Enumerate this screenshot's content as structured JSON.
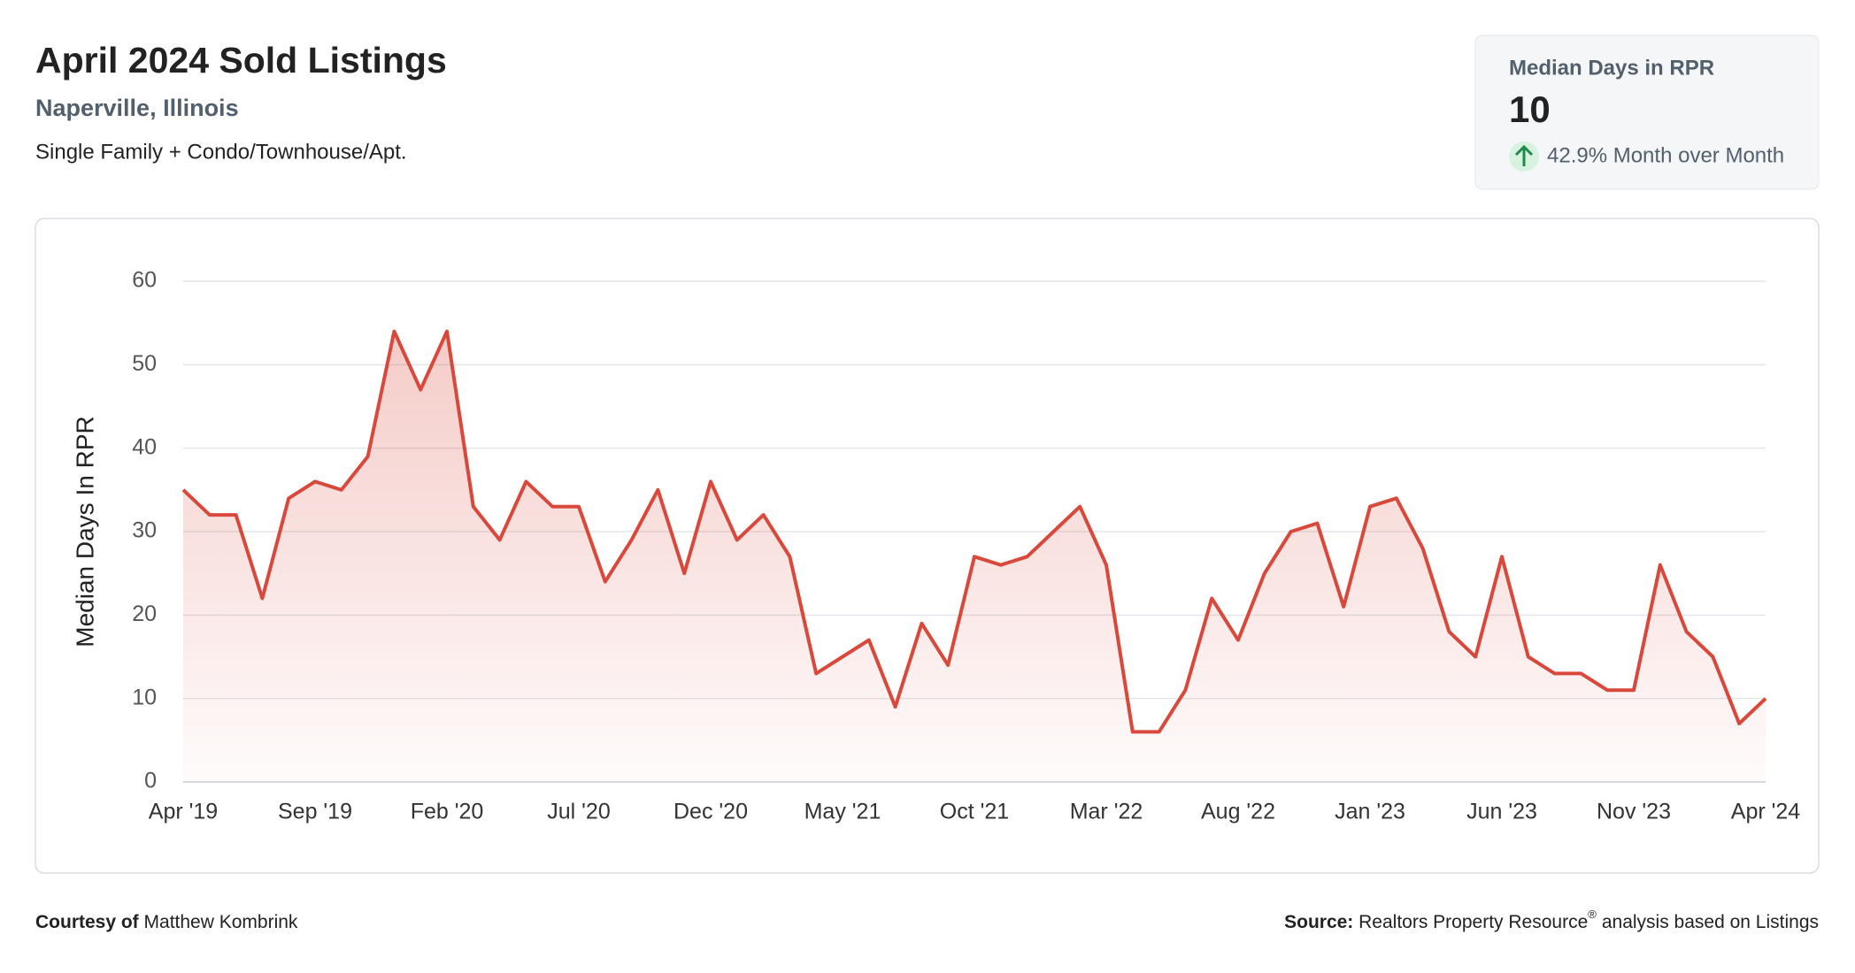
{
  "header": {
    "title": "April 2024 Sold Listings",
    "location": "Naperville, Illinois",
    "subtitle": "Single Family + Condo/Townhouse/Apt."
  },
  "kpi": {
    "label": "Median Days in RPR",
    "value": "10",
    "change": "42.9% Month over Month"
  },
  "footer": {
    "courtesy_label": "Courtesy of",
    "courtesy_name": "Matthew Kombrink",
    "source_label": "Source:",
    "source_name": "Realtors Property Resource",
    "source_mark": "®",
    "source_rest": "analysis based on Listings"
  },
  "chart_data": {
    "type": "area",
    "y_label": "Median Days In RPR",
    "categories": [
      "Apr '19",
      null,
      null,
      null,
      null,
      "Sep '19",
      null,
      null,
      null,
      null,
      "Feb '20",
      null,
      null,
      null,
      null,
      "Jul '20",
      null,
      null,
      null,
      null,
      "Dec '20",
      null,
      null,
      null,
      null,
      "May '21",
      null,
      null,
      null,
      null,
      "Oct '21",
      null,
      null,
      null,
      null,
      "Mar '22",
      null,
      null,
      null,
      null,
      "Aug '22",
      null,
      null,
      null,
      null,
      "Jan '23",
      null,
      null,
      null,
      null,
      "Jun '23",
      null,
      null,
      null,
      null,
      "Nov '23",
      null,
      null,
      null,
      null,
      "Apr '24"
    ],
    "values": [
      35,
      32,
      32,
      22,
      34,
      36,
      35,
      39,
      54,
      47,
      54,
      33,
      29,
      36,
      33,
      33,
      24,
      29,
      35,
      25,
      36,
      29,
      32,
      27,
      13,
      15,
      17,
      9,
      19,
      14,
      27,
      26,
      27,
      30,
      33,
      26,
      6,
      6,
      11,
      22,
      17,
      25,
      30,
      31,
      21,
      33,
      34,
      28,
      18,
      15,
      27,
      15,
      13,
      13,
      11,
      11,
      26,
      18,
      15,
      7,
      10
    ],
    "color": "#d9483b",
    "ylim": [
      0,
      60
    ],
    "yticks": [
      0,
      10,
      20,
      30,
      40,
      50,
      60
    ],
    "grid": true
  }
}
